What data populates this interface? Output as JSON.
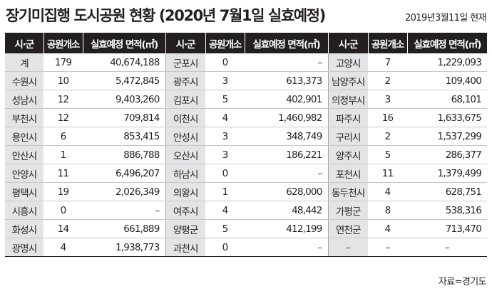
{
  "title": "장기미집행 도시공원 현황 (2020년 7월1일 실효예정)",
  "date": "2019년3월11일 현재",
  "source": "자료=경기도",
  "headers": [
    "시·군",
    "공원개소",
    "실효예정 면적(㎡)",
    "시·군",
    "공원개소",
    "실효예정 면적(㎡)",
    "시·군",
    "공원개소",
    "실효예정 면적(㎡)"
  ],
  "rows": [
    [
      "계",
      "179",
      "40,674,188",
      "군포시",
      "0",
      "–",
      "고양시",
      "7",
      "1,229,093"
    ],
    [
      "수원시",
      "10",
      "5,472,845",
      "광주시",
      "3",
      "613,373",
      "남양주시",
      "2",
      "109,400"
    ],
    [
      "성남시",
      "12",
      "9,403,260",
      "김포시",
      "5",
      "402,901",
      "의정부시",
      "3",
      "68,101"
    ],
    [
      "부천시",
      "12",
      "709,814",
      "이천시",
      "4",
      "1,460,982",
      "파주시",
      "16",
      "1,633,675"
    ],
    [
      "용인시",
      "6",
      "853,415",
      "안성시",
      "3",
      "348,749",
      "구리시",
      "2",
      "1,537,299"
    ],
    [
      "안산시",
      "1",
      "886,788",
      "오산시",
      "3",
      "186,221",
      "양주시",
      "5",
      "286,377"
    ],
    [
      "안양시",
      "11",
      "6,496,207",
      "하남시",
      "0",
      "–",
      "포천시",
      "11",
      "1,379,499"
    ],
    [
      "평택시",
      "19",
      "2,026,349",
      "의왕시",
      "1",
      "628,000",
      "동두천시",
      "4",
      "628,751"
    ],
    [
      "시흥시",
      "0",
      "–",
      "여주시",
      "4",
      "48,442",
      "가평군",
      "8",
      "538,316"
    ],
    [
      "화성시",
      "14",
      "661,889",
      "양평군",
      "5",
      "412,199",
      "연천군",
      "4",
      "713,470"
    ],
    [
      "광명시",
      "4",
      "1,938,773",
      "과천시",
      "0",
      "–",
      "–",
      "–",
      "–"
    ]
  ]
}
